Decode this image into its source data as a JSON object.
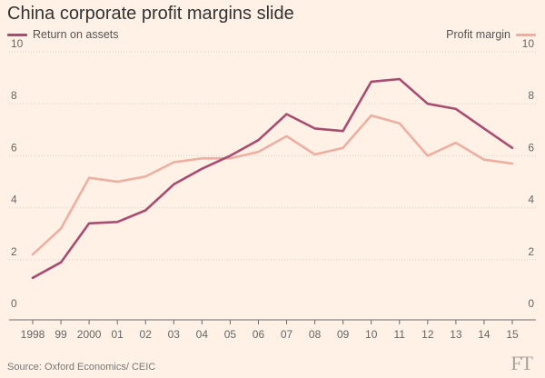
{
  "title": "China corporate profit margins slide",
  "source": "Source: Oxford Economics/ CEIC",
  "brand": "FT",
  "colors": {
    "background": "#fff1e5",
    "roa": "#a84c72",
    "margin": "#eeafa3",
    "grid": "#d9cfc6",
    "axis": "#6b6b6b"
  },
  "chart_data": {
    "type": "line",
    "categories": [
      "1998",
      "99",
      "2000",
      "01",
      "02",
      "03",
      "04",
      "05",
      "06",
      "07",
      "08",
      "09",
      "10",
      "11",
      "12",
      "13",
      "14",
      "15"
    ],
    "series": [
      {
        "name": "Return on assets",
        "values": [
          1.3,
          1.9,
          3.4,
          3.45,
          3.9,
          4.9,
          5.5,
          6.0,
          6.6,
          7.6,
          7.05,
          6.95,
          8.85,
          8.95,
          8.0,
          7.8,
          7.05,
          6.3
        ]
      },
      {
        "name": "Profit margin",
        "values": [
          2.2,
          3.2,
          5.15,
          5.0,
          5.2,
          5.75,
          5.9,
          5.9,
          6.15,
          6.75,
          6.05,
          6.3,
          7.55,
          7.25,
          6.0,
          6.5,
          5.85,
          5.7
        ]
      }
    ],
    "yticks": [
      0,
      2,
      4,
      6,
      8,
      10
    ],
    "ylim": [
      0,
      10
    ],
    "legend": "top",
    "grid": true
  }
}
